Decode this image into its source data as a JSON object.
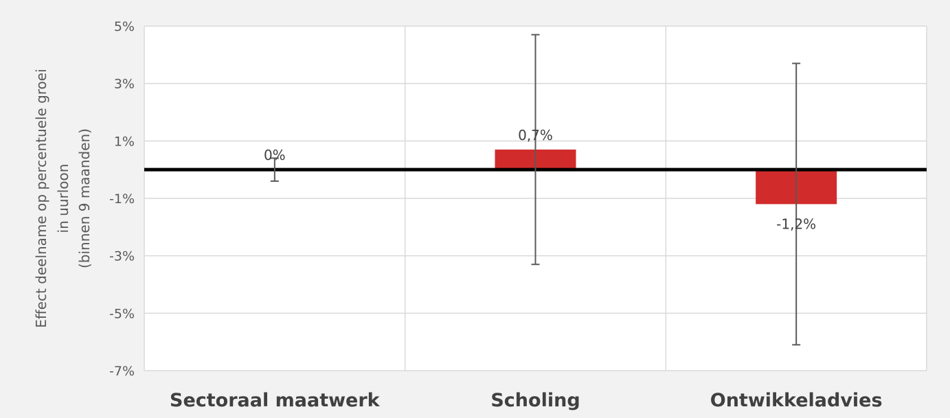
{
  "chart_data": {
    "type": "bar",
    "categories": [
      "Sectoraal maatwerk",
      "Scholing",
      "Ontwikkeladvies"
    ],
    "values": [
      0,
      0.7,
      -1.2
    ],
    "value_labels": [
      "0%",
      "0,7%",
      "-1,2%"
    ],
    "error_bars": [
      {
        "low": -0.4,
        "high": 0.4
      },
      {
        "low": -3.3,
        "high": 4.7
      },
      {
        "low": -6.1,
        "high": 3.7
      }
    ],
    "ylim": [
      -7,
      5
    ],
    "yticks": [
      5,
      3,
      1,
      -1,
      -3,
      -5,
      -7
    ],
    "ytick_labels": [
      "5%",
      "3%",
      "1%",
      "-1%",
      "-3%",
      "-5%",
      "-7%"
    ],
    "ylabel_lines": [
      "Effect deelname op percentuele groei",
      "in uurloon",
      "(binnen 9 maanden)"
    ],
    "xlabel": "",
    "title": "",
    "grid": true,
    "zero_line": true,
    "colors": {
      "bar": "#d22b2b",
      "zero_line": "#000000",
      "grid": "#d9d9d9",
      "error_bar": "#595959",
      "background": "#f2f2f2",
      "plot_background": "#ffffff"
    }
  }
}
